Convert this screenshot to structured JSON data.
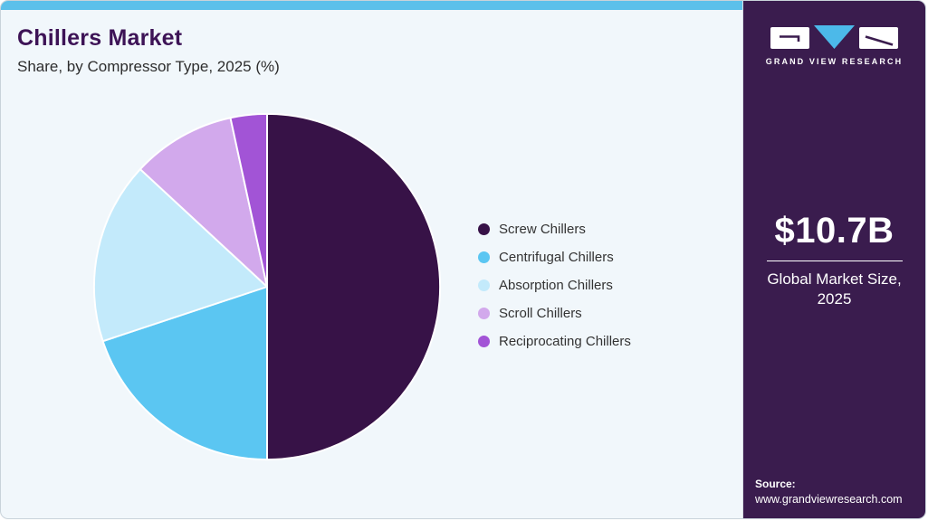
{
  "header": {
    "title": "Chillers Market",
    "subtitle": "Share, by Compressor Type, 2025 (%)"
  },
  "chart_data": {
    "type": "pie",
    "title": "Chillers Market Share, by Compressor Type, 2025 (%)",
    "unit": "%",
    "legend_position": "right",
    "direction": "clockwise",
    "start_angle_deg": 0,
    "series": [
      {
        "name": "Screw Chillers",
        "value": 50.0,
        "color": "#371247"
      },
      {
        "name": "Centrifugal Chillers",
        "value": 19.9,
        "color": "#5bc6f2"
      },
      {
        "name": "Absorption Chillers",
        "value": 17.0,
        "color": "#c3eafb"
      },
      {
        "name": "Scroll Chillers",
        "value": 9.7,
        "color": "#d2a9ec"
      },
      {
        "name": "Reciprocating Chillers",
        "value": 3.4,
        "color": "#a254d6"
      }
    ]
  },
  "sidebar": {
    "logo_text": "GRAND VIEW RESEARCH",
    "market_size": "$10.7B",
    "market_caption": "Global Market Size, 2025",
    "source_label": "Source:",
    "source_url": "www.grandviewresearch.com"
  },
  "colors": {
    "accent_bar": "#5cc0ea",
    "sidebar_bg": "#3a1c4e",
    "main_bg": "#f1f7fb",
    "title_text": "#3d1356",
    "logo_triangle": "#4cb9e9"
  }
}
